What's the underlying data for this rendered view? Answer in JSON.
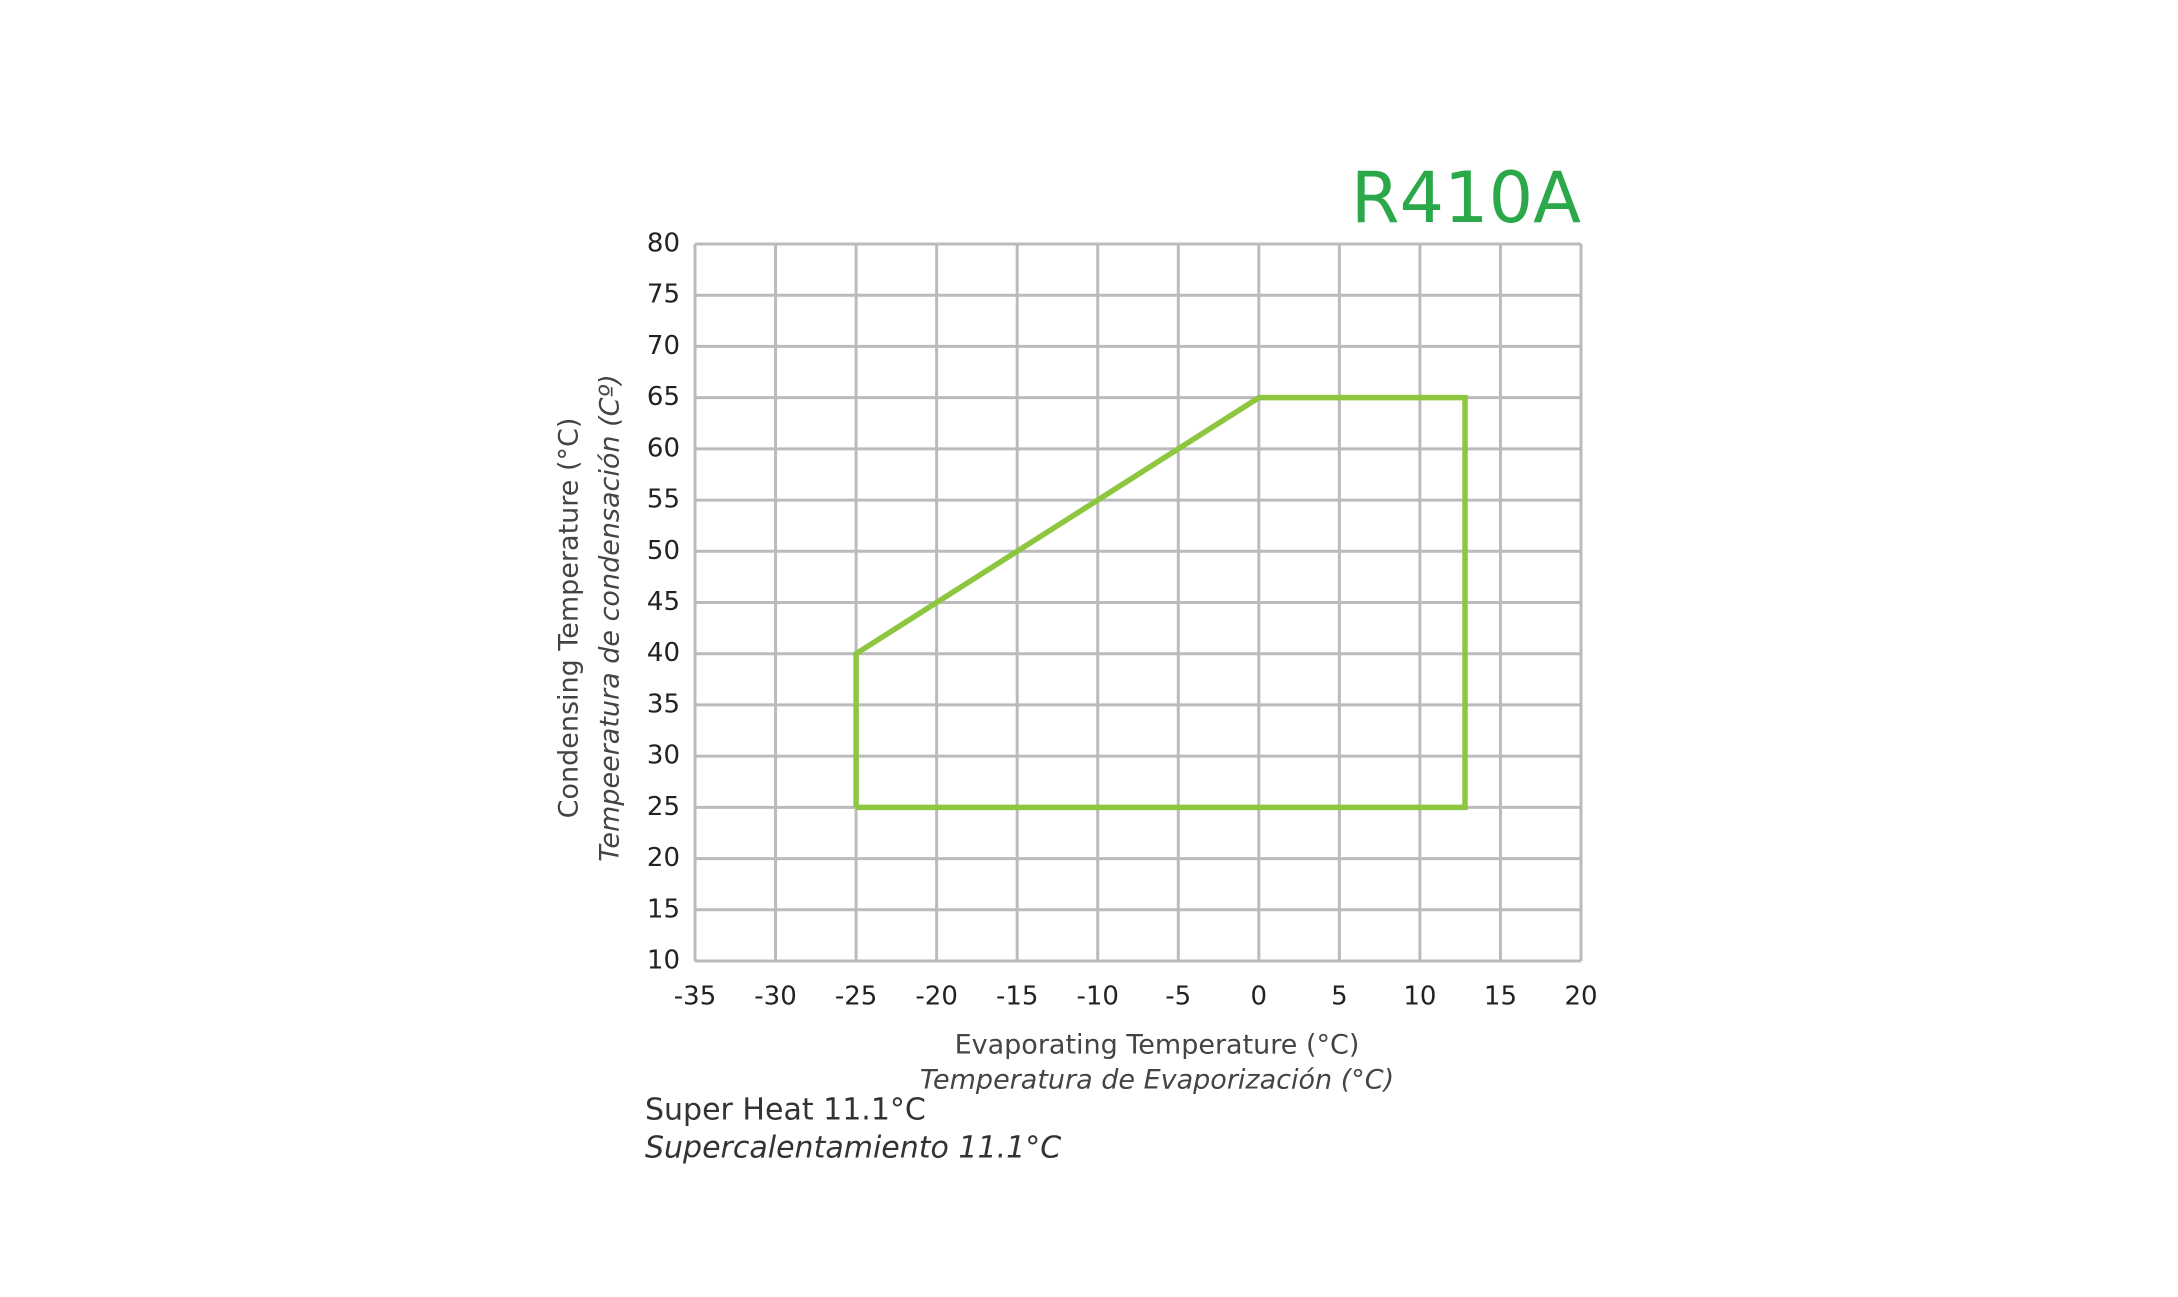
{
  "chart_data": {
    "type": "line",
    "title": "R410A",
    "title_color": "#2aa84a",
    "x_label": "Evaporating Temperature (°C)",
    "x_label_2": "Temperatura de Evaporización (°C)",
    "y_label": "Condensing Temperature (°C)",
    "y_label_2": "Tempeeratura de condensación (Cº)",
    "notes": [
      "Super Heat 11.1°C",
      "Supercalentamiento 11.1°C"
    ],
    "x": [
      -25,
      -25,
      0,
      12.8,
      12.8,
      -25
    ],
    "series": [
      {
        "color": "#8dc63f",
        "values": [
          25,
          40,
          65,
          65,
          25,
          25
        ]
      }
    ],
    "xlim": [
      -35,
      20
    ],
    "xticks": [
      -35,
      -30,
      -25,
      -20,
      -15,
      -10,
      -5,
      0,
      5,
      10,
      15,
      20
    ],
    "ylim": [
      10,
      80
    ],
    "yticks": [
      10,
      15,
      20,
      25,
      30,
      35,
      40,
      45,
      50,
      55,
      60,
      65,
      70,
      75,
      80
    ],
    "grid": true,
    "grid_color": "#bbbbbb"
  }
}
